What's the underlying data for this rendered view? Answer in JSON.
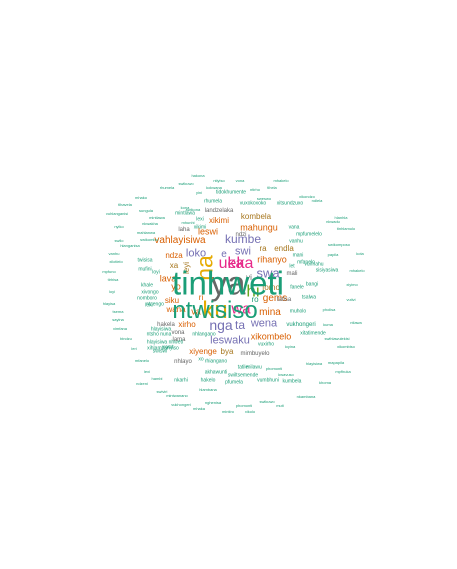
{
  "palette": {
    "teal": "#1b9e77",
    "orange": "#d95f02",
    "purple": "#7570b3",
    "magenta": "#e7298a",
    "green": "#66a61e",
    "gold": "#e6ab02",
    "brown": "#a6761d",
    "gray": "#666666"
  },
  "words": [
    {
      "text": "ya",
      "color": "gray"
    },
    {
      "text": "ku",
      "color": "gold"
    },
    {
      "text": "na",
      "color": "gold"
    },
    {
      "text": "ka",
      "color": "magenta"
    },
    {
      "text": "ueka",
      "color": "magenta"
    },
    {
      "text": "hi",
      "color": "green"
    },
    {
      "text": "wa",
      "color": "magenta"
    },
    {
      "text": "nga",
      "color": "purple"
    },
    {
      "text": "ta",
      "color": "purple"
    },
    {
      "text": "swa",
      "color": "purple"
    },
    {
      "text": "kumbe",
      "color": "purple"
    },
    {
      "text": "swi",
      "color": "purple"
    },
    {
      "text": "loko",
      "color": "purple"
    },
    {
      "text": "e",
      "color": "purple"
    },
    {
      "text": "leswaku",
      "color": "purple"
    },
    {
      "text": "wena",
      "color": "purple"
    },
    {
      "text": "mina",
      "color": "orange"
    },
    {
      "text": "vahlayisiwa",
      "color": "orange"
    },
    {
      "text": "gems",
      "color": "orange"
    },
    {
      "text": "mahungu",
      "color": "orange"
    },
    {
      "text": "xikombelo",
      "color": "orange"
    },
    {
      "text": "rihanyo",
      "color": "orange"
    },
    {
      "text": "leswi",
      "color": "orange"
    },
    {
      "text": "va",
      "color": "orange"
    },
    {
      "text": "yo",
      "color": "orange"
    },
    {
      "text": "lava",
      "color": "orange"
    },
    {
      "text": "xiyenge",
      "color": "orange"
    },
    {
      "text": "xirho",
      "color": "orange"
    },
    {
      "text": "wana",
      "color": "orange"
    },
    {
      "text": "siku",
      "color": "orange"
    },
    {
      "text": "ri",
      "color": "orange"
    },
    {
      "text": "xikimi",
      "color": "orange"
    },
    {
      "text": "ndza",
      "color": "orange"
    },
    {
      "text": "bya",
      "color": "brown"
    },
    {
      "text": "kombela",
      "color": "brown"
    },
    {
      "text": "ra",
      "color": "brown"
    },
    {
      "text": "endla",
      "color": "brown"
    },
    {
      "text": "fomo",
      "color": "brown"
    },
    {
      "text": "ro",
      "color": "teal"
    },
    {
      "text": "leyi",
      "color": "brown"
    },
    {
      "text": "xa",
      "color": "brown"
    },
    {
      "text": "yi",
      "color": "gray"
    },
    {
      "text": "mali",
      "color": "gray"
    },
    {
      "text": "lama",
      "color": "gray"
    },
    {
      "text": "vona",
      "color": "gray"
    },
    {
      "text": "mimbuyelo",
      "color": "gray"
    },
    {
      "text": "landzelaka",
      "color": "gray"
    },
    {
      "text": "ndzi",
      "color": "gray"
    },
    {
      "text": "laha",
      "color": "gray"
    },
    {
      "text": "hakela",
      "color": "gray"
    },
    {
      "text": "tatisa",
      "color": "gray"
    },
    {
      "text": "nhlayo",
      "color": "gray"
    },
    {
      "text": "vukhongeri",
      "color": "teal"
    },
    {
      "text": "tidokhumente",
      "color": "teal"
    },
    {
      "text": "rhumela",
      "color": "teal"
    },
    {
      "text": "vuxokoxoko",
      "color": "teal"
    },
    {
      "text": "xitsundzuxo",
      "color": "teal"
    },
    {
      "text": "mintlawa",
      "color": "teal"
    },
    {
      "text": "lexi",
      "color": "teal"
    },
    {
      "text": "xikimi",
      "color": "teal"
    },
    {
      "text": "vana",
      "color": "teal"
    },
    {
      "text": "mpfumelelo",
      "color": "teal"
    },
    {
      "text": "vanhu",
      "color": "teal"
    },
    {
      "text": "mani",
      "color": "teal"
    },
    {
      "text": "vunnahu",
      "color": "teal"
    },
    {
      "text": "let",
      "color": "teal"
    },
    {
      "text": "sisiyasiwa",
      "color": "teal"
    },
    {
      "text": "fanele",
      "color": "teal"
    },
    {
      "text": "bangi",
      "color": "teal"
    },
    {
      "text": "tsalwa",
      "color": "teal"
    },
    {
      "text": "muholo",
      "color": "teal"
    },
    {
      "text": "vuxirho",
      "color": "teal"
    },
    {
      "text": "milawu",
      "color": "teal"
    },
    {
      "text": "tatile",
      "color": "teal"
    },
    {
      "text": "swiltsemende",
      "color": "teal"
    },
    {
      "text": "akhawunti",
      "color": "teal"
    },
    {
      "text": "xihlambanyiso",
      "color": "teal"
    },
    {
      "text": "rhiangano",
      "color": "teal"
    },
    {
      "text": "hlayisiwa nhweti",
      "color": "teal"
    },
    {
      "text": "mfanelo",
      "color": "teal"
    },
    {
      "text": "xitatimende",
      "color": "teal"
    },
    {
      "text": "nhlangano",
      "color": "teal"
    },
    {
      "text": "hakelo",
      "color": "teal"
    },
    {
      "text": "swiswi",
      "color": "teal"
    },
    {
      "text": "twisisa",
      "color": "teal"
    },
    {
      "text": "ntsengo",
      "color": "teal"
    },
    {
      "text": "xivongo",
      "color": "teal"
    },
    {
      "text": "khale",
      "color": "teal"
    },
    {
      "text": "nomboro",
      "color": "teal"
    },
    {
      "text": "mufini",
      "color": "teal"
    },
    {
      "text": "loyi",
      "color": "teal"
    },
    {
      "text": "lexi",
      "color": "teal"
    },
    {
      "text": "ntsho nuna",
      "color": "teal"
    },
    {
      "text": "xamt",
      "color": "teal"
    },
    {
      "text": "hlayisiwa",
      "color": "teal"
    },
    {
      "text": "xo",
      "color": "teal"
    },
    {
      "text": "nkarhi",
      "color": "teal"
    },
    {
      "text": "pfumela",
      "color": "teal"
    },
    {
      "text": "vumbhuni",
      "color": "teal"
    },
    {
      "text": "kumbela",
      "color": "teal"
    },
    {
      "text": "mintwanano",
      "color": "teal"
    },
    {
      "text": "nghenisa",
      "color": "teal"
    },
    {
      "text": "phomonti",
      "color": "teal"
    },
    {
      "text": "swikuwo",
      "color": "teal"
    },
    {
      "text": "hlambana",
      "color": "teal"
    },
    {
      "text": "swikona",
      "color": "teal"
    },
    {
      "text": "mhunhi",
      "color": "teal"
    },
    {
      "text": "kona",
      "color": "teal"
    },
    {
      "text": "sungula",
      "color": "teal"
    },
    {
      "text": "mintlawa",
      "color": "teal"
    },
    {
      "text": "nkwakha",
      "color": "teal"
    },
    {
      "text": "mahlanwa",
      "color": "teal"
    },
    {
      "text": "swikombo",
      "color": "teal"
    },
    {
      "text": "hlanganisa",
      "color": "teal"
    },
    {
      "text": "mapapila",
      "color": "teal"
    },
    {
      "text": "phomonti",
      "color": "teal"
    },
    {
      "text": "kwavuso",
      "color": "teal"
    },
    {
      "text": "loyina",
      "color": "teal"
    },
    {
      "text": "hlayisiwa",
      "color": "teal"
    },
    {
      "text": "kuma",
      "color": "teal"
    },
    {
      "text": "xikombiso",
      "color": "teal"
    },
    {
      "text": "pholisa",
      "color": "teal"
    },
    {
      "text": "xiyimo",
      "color": "teal"
    },
    {
      "text": "papila",
      "color": "teal"
    },
    {
      "text": "swikomposo",
      "color": "teal"
    },
    {
      "text": "hlanhla",
      "color": "teal"
    },
    {
      "text": "nkwadu",
      "color": "teal"
    },
    {
      "text": "ndlela",
      "color": "teal"
    },
    {
      "text": "xikondzo",
      "color": "teal"
    },
    {
      "text": "mhakelo",
      "color": "teal"
    },
    {
      "text": "tlhela",
      "color": "teal"
    },
    {
      "text": "sweswo",
      "color": "teal"
    },
    {
      "text": "ntirho",
      "color": "teal"
    },
    {
      "text": "vona",
      "color": "teal"
    },
    {
      "text": "ntiyiso",
      "color": "teal"
    },
    {
      "text": "kokwana",
      "color": "teal"
    },
    {
      "text": "hakona",
      "color": "teal"
    },
    {
      "text": "yini",
      "color": "teal"
    },
    {
      "text": "swikuwo",
      "color": "teal"
    },
    {
      "text": "rhumela",
      "color": "teal"
    },
    {
      "text": "mhako",
      "color": "teal"
    },
    {
      "text": "tlhavela",
      "color": "teal"
    },
    {
      "text": "vuhlanganisi",
      "color": "teal"
    },
    {
      "text": "nyiko",
      "color": "teal"
    },
    {
      "text": "swilo",
      "color": "teal"
    },
    {
      "text": "vanhu",
      "color": "teal"
    },
    {
      "text": "xilotlelo",
      "color": "teal"
    },
    {
      "text": "mpfuno",
      "color": "teal"
    },
    {
      "text": "tirhisa",
      "color": "teal"
    },
    {
      "text": "loyi",
      "color": "teal"
    },
    {
      "text": "hlayisa",
      "color": "teal"
    },
    {
      "text": "tsema",
      "color": "teal"
    },
    {
      "text": "sayina",
      "color": "teal"
    },
    {
      "text": "ximfana",
      "color": "teal"
    },
    {
      "text": "bindzu",
      "color": "teal"
    },
    {
      "text": "leri",
      "color": "teal"
    },
    {
      "text": "mfanelo",
      "color": "teal"
    },
    {
      "text": "lexi",
      "color": "teal"
    },
    {
      "text": "hambi",
      "color": "teal"
    },
    {
      "text": "ndzeni",
      "color": "teal"
    },
    {
      "text": "swiviri",
      "color": "teal"
    },
    {
      "text": "vukhongeri",
      "color": "teal"
    },
    {
      "text": "mhaka",
      "color": "teal"
    },
    {
      "text": "mintiro",
      "color": "teal"
    },
    {
      "text": "xikolo",
      "color": "teal"
    },
    {
      "text": "muti",
      "color": "teal"
    },
    {
      "text": "nkambana",
      "color": "teal"
    },
    {
      "text": "khoma",
      "color": "teal"
    },
    {
      "text": "mpfhuka",
      "color": "teal"
    },
    {
      "text": "swihlawulekisi",
      "color": "teal"
    },
    {
      "text": "ntlawa",
      "color": "teal"
    },
    {
      "text": "vutivi",
      "color": "teal"
    },
    {
      "text": "mhakelo",
      "color": "teal"
    },
    {
      "text": "kota",
      "color": "teal"
    },
    {
      "text": "tinhlamulo",
      "color": "teal"
    },
    {
      "text": "tinhweti",
      "color": "teal"
    },
    {
      "text": "ntwisiso",
      "color": "teal"
    }
  ]
}
